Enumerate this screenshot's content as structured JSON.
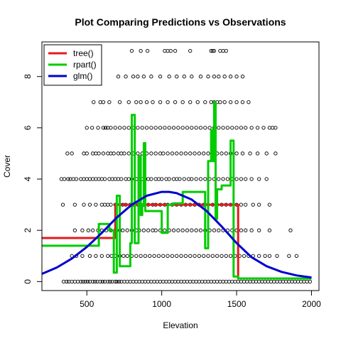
{
  "chart_data": {
    "type": "scatter",
    "title": "Plot Comparing Predictions vs Observations",
    "xlabel": "Elevation",
    "ylabel": "Cover",
    "xlim": [
      200,
      2050
    ],
    "ylim": [
      -0.35,
      9.35
    ],
    "x_ticks": [
      500,
      1000,
      1500,
      2000
    ],
    "y_ticks": [
      0,
      2,
      4,
      6,
      8
    ],
    "x_tick_labels": [
      "500",
      "1000",
      "1500",
      "2000"
    ],
    "y_tick_labels": [
      "0",
      "2",
      "4",
      "6",
      "8"
    ],
    "grid": false,
    "legend_position": "top-left",
    "legend": [
      {
        "label": "tree()",
        "color": "#e41a1c"
      },
      {
        "label": "rpart()",
        "color": "#00cc00"
      },
      {
        "label": "glm()",
        "color": "#0000cc"
      }
    ],
    "observations": {
      "marker": "open-circle",
      "rows": [
        {
          "y": 0,
          "x": [
            345,
            365,
            380,
            400,
            420,
            440,
            460,
            475,
            490,
            505,
            520,
            540,
            555,
            570,
            590,
            605,
            620,
            640,
            655,
            670,
            690,
            700,
            715,
            730,
            750,
            770,
            790,
            810,
            830,
            850,
            870,
            890,
            910,
            930,
            950,
            970,
            990,
            1010,
            1030,
            1050,
            1070,
            1090,
            1110,
            1130,
            1150,
            1170,
            1190,
            1210,
            1230,
            1250,
            1270,
            1290,
            1310,
            1330,
            1350,
            1370,
            1390,
            1410,
            1430,
            1450,
            1470,
            1490,
            1510,
            1530,
            1550,
            1570,
            1590,
            1610,
            1630,
            1650,
            1670,
            1690,
            1710,
            1730,
            1750,
            1770,
            1790,
            1810,
            1830,
            1850,
            1870,
            1890,
            1910,
            1930,
            1950,
            1970,
            1990
          ]
        },
        {
          "y": 1,
          "x": [
            400,
            430,
            470,
            520,
            560,
            600,
            640,
            665,
            690,
            720,
            745,
            770,
            800,
            830,
            860,
            890,
            920,
            950,
            980,
            1010,
            1040,
            1070,
            1100,
            1130,
            1160,
            1190,
            1220,
            1250,
            1280,
            1310,
            1340,
            1370,
            1400,
            1430,
            1460,
            1490,
            1520,
            1550,
            1580,
            1610,
            1650,
            1690,
            1720,
            1770,
            1850,
            1900
          ]
        },
        {
          "y": 2,
          "x": [
            420,
            470,
            510,
            540,
            575,
            600,
            630,
            660,
            690,
            720,
            740,
            770,
            800,
            830,
            850,
            880,
            910,
            940,
            960,
            990,
            1020,
            1050,
            1080,
            1110,
            1140,
            1170,
            1200,
            1230,
            1260,
            1290,
            1320,
            1350,
            1380,
            1410,
            1440,
            1470,
            1500,
            1530,
            1560,
            1600,
            1650,
            1720,
            1860
          ]
        },
        {
          "y": 3,
          "x": [
            340,
            420,
            480,
            520,
            560,
            600,
            620,
            640,
            660,
            690,
            720,
            740,
            760,
            790,
            810,
            840,
            860,
            880,
            910,
            940,
            960,
            990,
            1020,
            1040,
            1070,
            1100,
            1130,
            1160,
            1190,
            1220,
            1250,
            1280,
            1310,
            1340,
            1370,
            1400,
            1430,
            1460,
            1500,
            1530,
            1560,
            1610,
            1650,
            1720
          ]
        },
        {
          "y": 4,
          "x": [
            330,
            350,
            375,
            390,
            410,
            430,
            460,
            480,
            500,
            520,
            540,
            560,
            580,
            600,
            620,
            650,
            670,
            690,
            710,
            730,
            760,
            780,
            800,
            830,
            850,
            870,
            890,
            910,
            930,
            960,
            980,
            1000,
            1030,
            1050,
            1080,
            1100,
            1120,
            1150,
            1180,
            1200,
            1230,
            1260,
            1290,
            1320,
            1350,
            1380,
            1410,
            1440,
            1470,
            1500,
            1530,
            1560,
            1600,
            1650,
            1700
          ]
        },
        {
          "y": 5,
          "x": [
            370,
            400,
            480,
            500,
            540,
            560,
            580,
            610,
            640,
            660,
            680,
            710,
            730,
            750,
            780,
            810,
            840,
            870,
            900,
            930,
            960,
            990,
            1010,
            1040,
            1070,
            1100,
            1130,
            1160,
            1190,
            1220,
            1250,
            1280,
            1310,
            1340,
            1370,
            1400,
            1430,
            1460,
            1500,
            1540,
            1590,
            1640,
            1700,
            1760
          ]
        },
        {
          "y": 6,
          "x": [
            500,
            535,
            575,
            610,
            625,
            640,
            660,
            690,
            720,
            750,
            780,
            810,
            840,
            870,
            900,
            930,
            960,
            990,
            1020,
            1050,
            1080,
            1110,
            1140,
            1170,
            1200,
            1230,
            1260,
            1290,
            1320,
            1350,
            1380,
            1410,
            1440,
            1470,
            1500,
            1530,
            1560,
            1600,
            1640,
            1680,
            1720,
            1740,
            1760
          ]
        },
        {
          "y": 7,
          "x": [
            545,
            590,
            610,
            650,
            720,
            780,
            830,
            860,
            900,
            940,
            990,
            1040,
            1090,
            1140,
            1190,
            1240,
            1290,
            1330,
            1350,
            1370,
            1390,
            1420,
            1460,
            1500,
            1540,
            1580
          ]
        },
        {
          "y": 8,
          "x": [
            710,
            760,
            810,
            840,
            880,
            930,
            990,
            1050,
            1100,
            1150,
            1200,
            1260,
            1310,
            1350,
            1380,
            1420,
            1460,
            1500,
            1540
          ]
        },
        {
          "y": 9,
          "x": [
            800,
            860,
            905,
            1020,
            1040,
            1060,
            1090,
            1190,
            1330,
            1340,
            1350,
            1390,
            1410,
            1430
          ]
        }
      ]
    },
    "series": [
      {
        "name": "tree()",
        "color": "#e41a1c",
        "kind": "step",
        "x": [
          200,
          690,
          690,
          1340,
          1340,
          1510,
          1510,
          1520
        ],
        "y": [
          1.7,
          1.7,
          3.0,
          3.0,
          3.0,
          3.0,
          0.12,
          0.12
        ]
      },
      {
        "name": "rpart()",
        "color": "#00cc00",
        "kind": "step",
        "x": [
          200,
          580,
          580,
          650,
          650,
          680,
          680,
          700,
          700,
          720,
          720,
          790,
          790,
          800,
          800,
          820,
          820,
          845,
          845,
          860,
          860,
          870,
          870,
          880,
          880,
          890,
          890,
          1000,
          1000,
          1020,
          1020,
          1040,
          1040,
          1075,
          1075,
          1140,
          1140,
          1290,
          1290,
          1310,
          1310,
          1330,
          1330,
          1340,
          1340,
          1350,
          1350,
          1360,
          1360,
          1370,
          1370,
          1400,
          1400,
          1460,
          1460,
          1480,
          1480,
          1510,
          1510,
          2000
        ],
        "y": [
          1.4,
          1.4,
          2.25,
          2.25,
          2.0,
          2.0,
          0.35,
          0.35,
          3.35,
          3.35,
          0.6,
          0.6,
          1.5,
          1.5,
          6.5,
          6.5,
          1.5,
          1.5,
          4.9,
          4.9,
          2.6,
          2.6,
          3.0,
          3.0,
          5.4,
          5.4,
          2.75,
          2.75,
          1.9,
          1.9,
          1.9,
          1.9,
          3.0,
          3.0,
          3.05,
          3.05,
          3.5,
          3.5,
          1.3,
          1.3,
          4.7,
          4.7,
          5.9,
          5.9,
          4.7,
          4.7,
          7.0,
          7.0,
          2.45,
          2.45,
          3.6,
          3.6,
          3.75,
          3.75,
          5.5,
          5.5,
          0.2,
          0.2,
          0.12,
          0.12
        ]
      },
      {
        "name": "glm()",
        "color": "#0000cc",
        "kind": "curve",
        "x": [
          200,
          300,
          400,
          500,
          600,
          700,
          800,
          900,
          1000,
          1050,
          1100,
          1200,
          1300,
          1400,
          1500,
          1600,
          1700,
          1800,
          1900,
          2000
        ],
        "y": [
          0.3,
          0.55,
          0.9,
          1.35,
          1.9,
          2.5,
          3.0,
          3.35,
          3.5,
          3.5,
          3.45,
          3.2,
          2.75,
          2.15,
          1.5,
          0.95,
          0.6,
          0.38,
          0.24,
          0.16
        ]
      }
    ]
  }
}
